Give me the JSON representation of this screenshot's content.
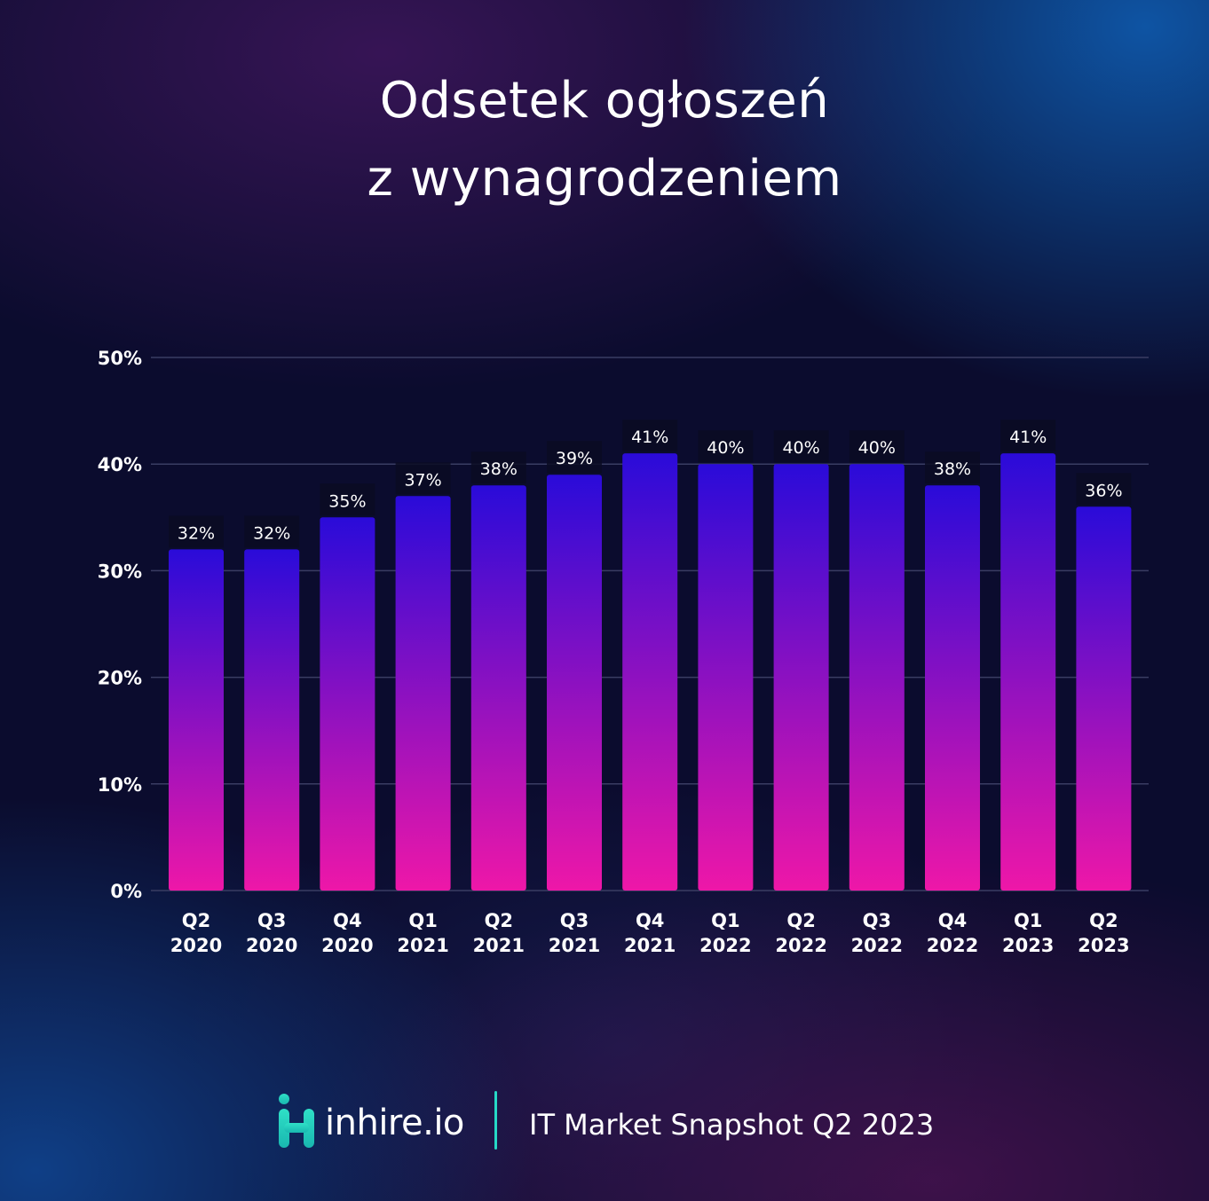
{
  "title": {
    "line1": "Odsetek ogłoszeń",
    "line2": "z wynagrodzeniem"
  },
  "chart_data": {
    "type": "bar",
    "categories": [
      [
        "Q2",
        "2020"
      ],
      [
        "Q3",
        "2020"
      ],
      [
        "Q4",
        "2020"
      ],
      [
        "Q1",
        "2021"
      ],
      [
        "Q2",
        "2021"
      ],
      [
        "Q3",
        "2021"
      ],
      [
        "Q4",
        "2021"
      ],
      [
        "Q1",
        "2022"
      ],
      [
        "Q2",
        "2022"
      ],
      [
        "Q3",
        "2022"
      ],
      [
        "Q4",
        "2022"
      ],
      [
        "Q1",
        "2023"
      ],
      [
        "Q2",
        "2023"
      ]
    ],
    "values": [
      32,
      32,
      35,
      37,
      38,
      39,
      41,
      40,
      40,
      40,
      38,
      41,
      36
    ],
    "value_labels": [
      "32%",
      "32%",
      "35%",
      "37%",
      "38%",
      "39%",
      "41%",
      "40%",
      "40%",
      "40%",
      "38%",
      "41%",
      "36%"
    ],
    "yticks": [
      0,
      10,
      20,
      30,
      40,
      50
    ],
    "ytick_labels": [
      "0%",
      "10%",
      "20%",
      "30%",
      "40%",
      "50%"
    ],
    "ylim": [
      0,
      50
    ],
    "grid": true,
    "legend": false,
    "colors": {
      "bar_top": "#2a0bd9",
      "bar_bottom": "#ee17a8",
      "grid": "#3a3d63",
      "text": "#ffffff",
      "label_box": "#0b0c22"
    }
  },
  "footer": {
    "brand": "inhire.io",
    "snapshot": "IT Market Snapshot Q2 2023",
    "logo_icon": "inhire-logo-icon",
    "colors": {
      "logo_top": "#2fe0c7",
      "logo_bottom": "#19b7b0",
      "divider": "#26d9c6"
    }
  }
}
